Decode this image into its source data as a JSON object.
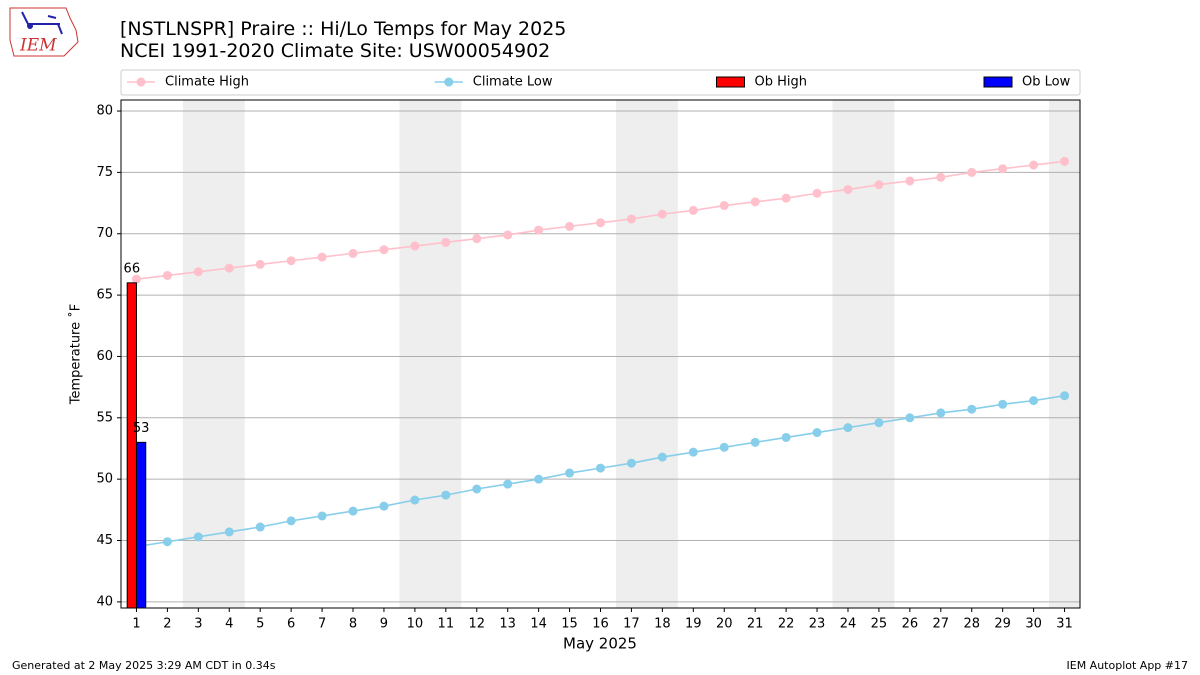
{
  "logo": {
    "text": "IEM"
  },
  "footer": {
    "left": "Generated at 2 May 2025 3:29 AM CDT in 0.34s",
    "right": "IEM Autoplot App #17"
  },
  "chart_data": {
    "type": "line",
    "title": "[NSTLNSPR] Praire :: Hi/Lo Temps for May 2025",
    "subtitle": "NCEI 1991-2020 Climate Site: USW00054902",
    "xlabel": "May 2025",
    "ylabel": "Temperature ˚F",
    "x": [
      1,
      2,
      3,
      4,
      5,
      6,
      7,
      8,
      9,
      10,
      11,
      12,
      13,
      14,
      15,
      16,
      17,
      18,
      19,
      20,
      21,
      22,
      23,
      24,
      25,
      26,
      27,
      28,
      29,
      30,
      31
    ],
    "xlim": [
      0.5,
      31.5
    ],
    "xticks": [
      1,
      2,
      3,
      4,
      5,
      6,
      7,
      8,
      9,
      10,
      11,
      12,
      13,
      14,
      15,
      16,
      17,
      18,
      19,
      20,
      21,
      22,
      23,
      24,
      25,
      26,
      27,
      28,
      29,
      30,
      31
    ],
    "ylim": [
      39.5,
      80.9
    ],
    "yticks": [
      40,
      45,
      50,
      55,
      60,
      65,
      70,
      75,
      80
    ],
    "grid": true,
    "legend": "top",
    "series": [
      {
        "name": "Climate High",
        "kind": "line",
        "color": "#ffc0cb",
        "values": [
          66.3,
          66.6,
          66.9,
          67.2,
          67.5,
          67.8,
          68.1,
          68.4,
          68.7,
          69.0,
          69.3,
          69.6,
          69.9,
          70.3,
          70.6,
          70.9,
          71.2,
          71.6,
          71.9,
          72.3,
          72.6,
          72.9,
          73.3,
          73.6,
          74.0,
          74.3,
          74.6,
          75.0,
          75.3,
          75.6,
          75.9
        ]
      },
      {
        "name": "Climate Low",
        "kind": "line",
        "color": "#87ceeb",
        "values": [
          44.5,
          44.9,
          45.3,
          45.7,
          46.1,
          46.6,
          47.0,
          47.4,
          47.8,
          48.3,
          48.7,
          49.2,
          49.6,
          50.0,
          50.5,
          50.9,
          51.3,
          51.8,
          52.2,
          52.6,
          53.0,
          53.4,
          53.8,
          54.2,
          54.6,
          55.0,
          55.4,
          55.7,
          56.1,
          56.4,
          56.8
        ]
      },
      {
        "name": "Ob High",
        "kind": "bar",
        "color": "#ff0000",
        "values": [
          66,
          null,
          null,
          null,
          null,
          null,
          null,
          null,
          null,
          null,
          null,
          null,
          null,
          null,
          null,
          null,
          null,
          null,
          null,
          null,
          null,
          null,
          null,
          null,
          null,
          null,
          null,
          null,
          null,
          null,
          null
        ]
      },
      {
        "name": "Ob Low",
        "kind": "bar",
        "color": "#0000ff",
        "values": [
          53,
          null,
          null,
          null,
          null,
          null,
          null,
          null,
          null,
          null,
          null,
          null,
          null,
          null,
          null,
          null,
          null,
          null,
          null,
          null,
          null,
          null,
          null,
          null,
          null,
          null,
          null,
          null,
          null,
          null,
          null
        ]
      }
    ]
  }
}
